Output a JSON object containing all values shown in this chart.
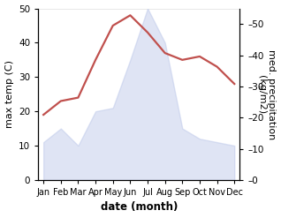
{
  "months": [
    "Jan",
    "Feb",
    "Mar",
    "Apr",
    "May",
    "Jun",
    "Jul",
    "Aug",
    "Sep",
    "Oct",
    "Nov",
    "Dec"
  ],
  "month_positions": [
    0,
    1,
    2,
    3,
    4,
    5,
    6,
    7,
    8,
    9,
    10,
    11
  ],
  "max_temp": [
    19,
    23,
    24,
    35,
    45,
    48,
    43,
    37,
    35,
    36,
    33,
    28
  ],
  "precipitation": [
    11,
    15,
    10,
    20,
    21,
    35,
    50,
    40,
    15,
    12,
    11,
    10
  ],
  "temp_color": "#c0504d",
  "precip_fill_color": "#b8c4e8",
  "temp_ylim": [
    0,
    50
  ],
  "precip_ylim": [
    0,
    55
  ],
  "left_yticks": [
    0,
    10,
    20,
    30,
    40,
    50
  ],
  "right_yticks": [
    0,
    10,
    20,
    30,
    40,
    50
  ],
  "right_yticklabels": [
    "–0",
    "–10",
    "–20",
    "–30",
    "–40",
    "–50"
  ],
  "xlabel": "date (month)",
  "ylabel_left": "max temp (C)",
  "ylabel_right": "med. precipitation\n(kg/m2)",
  "figsize": [
    3.18,
    2.47
  ],
  "dpi": 100,
  "line_width": 1.6,
  "fill_alpha": 0.45,
  "grid_color": "#dddddd"
}
